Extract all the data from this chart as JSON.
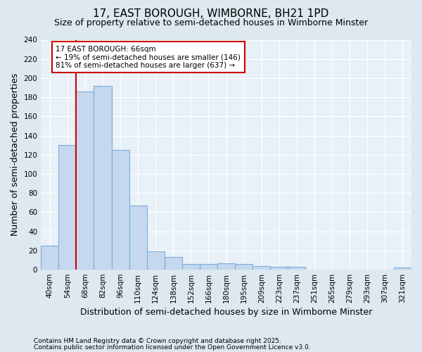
{
  "title": "17, EAST BOROUGH, WIMBORNE, BH21 1PD",
  "subtitle": "Size of property relative to semi-detached houses in Wimborne Minster",
  "xlabel": "Distribution of semi-detached houses by size in Wimborne Minster",
  "ylabel": "Number of semi-detached properties",
  "categories": [
    "40sqm",
    "54sqm",
    "68sqm",
    "82sqm",
    "96sqm",
    "110sqm",
    "124sqm",
    "138sqm",
    "152sqm",
    "166sqm",
    "180sqm",
    "195sqm",
    "209sqm",
    "223sqm",
    "237sqm",
    "251sqm",
    "265sqm",
    "279sqm",
    "293sqm",
    "307sqm",
    "321sqm"
  ],
  "values": [
    25,
    130,
    186,
    192,
    125,
    67,
    19,
    13,
    6,
    6,
    7,
    6,
    4,
    3,
    3,
    0,
    0,
    0,
    0,
    0,
    2
  ],
  "bar_color": "#c5d8f0",
  "bar_edge_color": "#7aadd4",
  "highlight_line_color": "#cc0000",
  "annotation_text_line1": "17 EAST BOROUGH: 66sqm",
  "annotation_text_line2": "← 19% of semi-detached houses are smaller (146)",
  "annotation_text_line3": "81% of semi-detached houses are larger (637) →",
  "annotation_box_facecolor": "#ffffff",
  "annotation_box_edgecolor": "#cc0000",
  "ylim": [
    0,
    240
  ],
  "yticks": [
    0,
    20,
    40,
    60,
    80,
    100,
    120,
    140,
    160,
    180,
    200,
    220,
    240
  ],
  "footnote_line1": "Contains HM Land Registry data © Crown copyright and database right 2025.",
  "footnote_line2": "Contains public sector information licensed under the Open Government Licence v3.0.",
  "bg_color": "#dde8f0",
  "plot_bg_color": "#e8f0f8",
  "title_fontsize": 11,
  "subtitle_fontsize": 9,
  "axis_label_fontsize": 9,
  "tick_fontsize": 7.5,
  "annotation_fontsize": 7.5,
  "footnote_fontsize": 6.5
}
